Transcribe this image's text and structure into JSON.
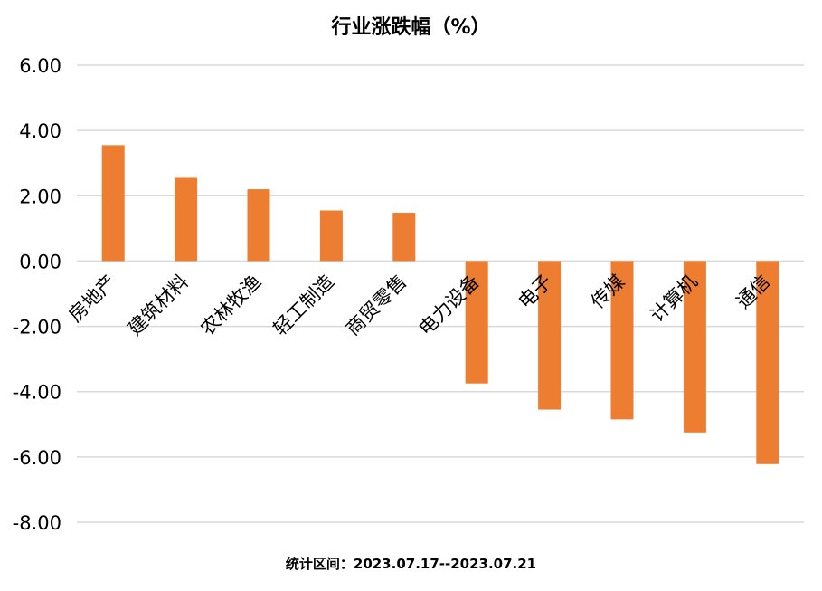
{
  "chart_data": {
    "type": "bar",
    "title": "行业涨跌幅（%）",
    "categories": [
      "房地产",
      "建筑材料",
      "农林牧渔",
      "轻工制造",
      "商贸零售",
      "电力设备",
      "电子",
      "传媒",
      "计算机",
      "通信"
    ],
    "values": [
      3.55,
      2.55,
      2.2,
      1.55,
      1.48,
      -3.75,
      -4.55,
      -4.85,
      -5.25,
      -6.22
    ],
    "y_ticks": [
      "6.00",
      "4.00",
      "2.00",
      "0.00",
      "-2.00",
      "-4.00",
      "-6.00",
      "-8.00"
    ],
    "ylim": [
      -8,
      6
    ],
    "xlabel": "",
    "ylabel": "",
    "grid": true,
    "legend": "none",
    "bar_color": "#ED7D31",
    "grid_color": "#D9D9D9"
  },
  "footnote": "统计区间：2023.07.17--2023.07.21"
}
